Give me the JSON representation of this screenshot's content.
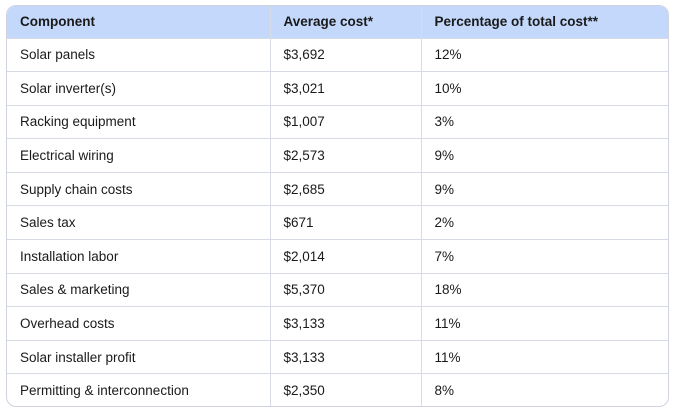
{
  "table": {
    "headers": [
      "Component",
      "Average cost*",
      "Percentage of total cost**"
    ],
    "rows": [
      [
        "Solar panels",
        "$3,692",
        "12%"
      ],
      [
        "Solar inverter(s)",
        "$3,021",
        "10%"
      ],
      [
        "Racking equipment",
        "$1,007",
        "3%"
      ],
      [
        "Electrical wiring",
        "$2,573",
        "9%"
      ],
      [
        "Supply chain costs",
        "$2,685",
        "9%"
      ],
      [
        "Sales tax",
        "$671",
        "2%"
      ],
      [
        "Installation labor",
        "$2,014",
        "7%"
      ],
      [
        "Sales & marketing",
        "$5,370",
        "18%"
      ],
      [
        "Overhead costs",
        "$3,133",
        "11%"
      ],
      [
        "Solar installer profit",
        "$3,133",
        "11%"
      ],
      [
        "Permitting & interconnection",
        "$2,350",
        "8%"
      ]
    ]
  },
  "colors": {
    "header_bg": "#c3d8fb",
    "border": "#cfd3e0"
  }
}
